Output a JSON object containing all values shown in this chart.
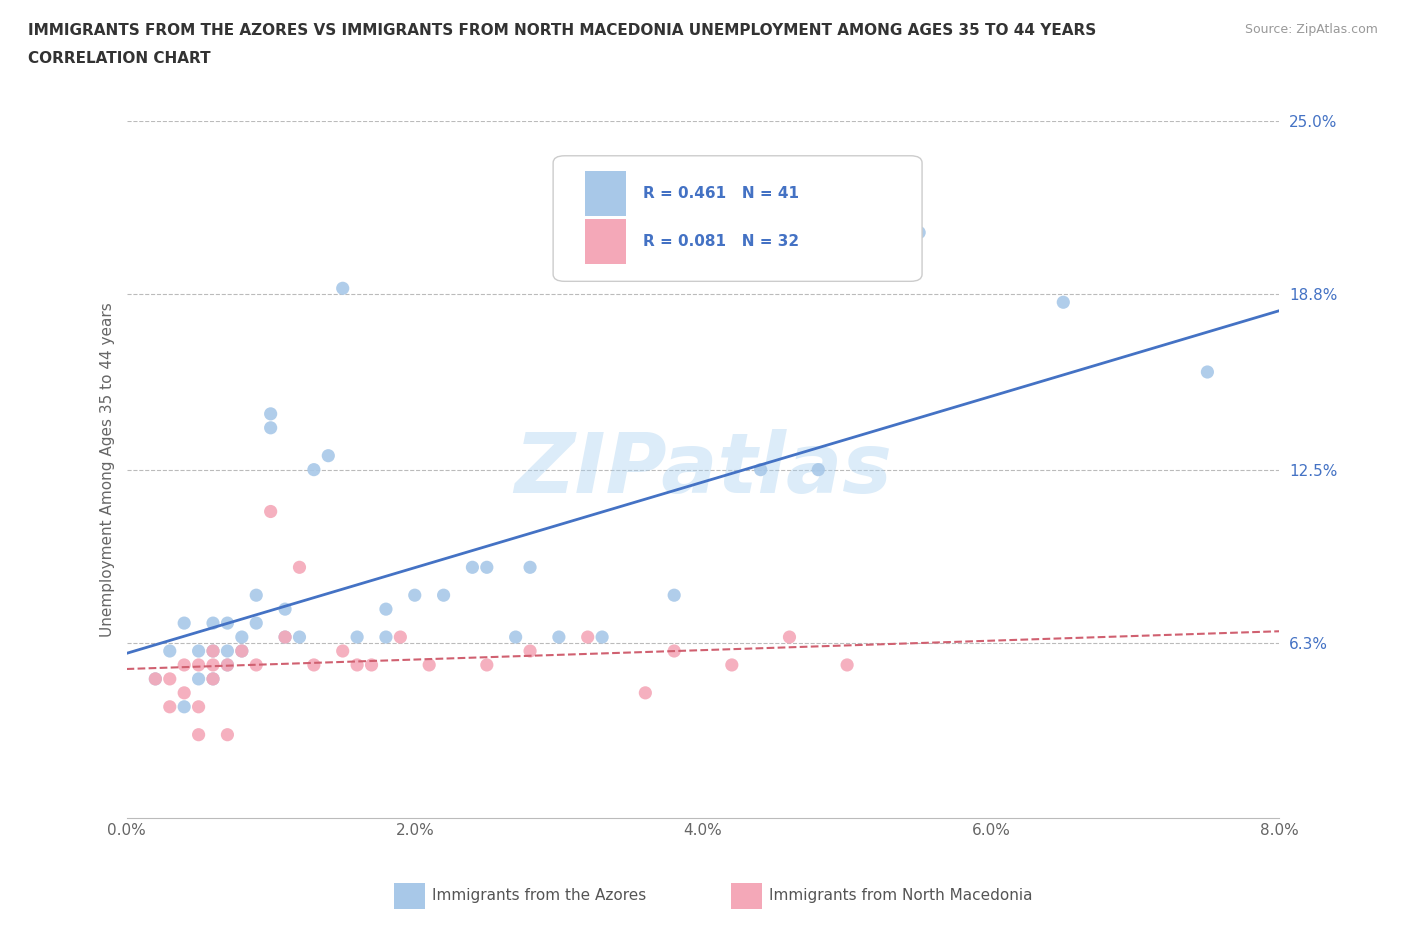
{
  "title_line1": "IMMIGRANTS FROM THE AZORES VS IMMIGRANTS FROM NORTH MACEDONIA UNEMPLOYMENT AMONG AGES 35 TO 44 YEARS",
  "title_line2": "CORRELATION CHART",
  "source": "Source: ZipAtlas.com",
  "xlabel_azores": "Immigrants from the Azores",
  "xlabel_macedonia": "Immigrants from North Macedonia",
  "ylabel": "Unemployment Among Ages 35 to 44 years",
  "xlim": [
    0.0,
    0.08
  ],
  "ylim": [
    0.0,
    0.25
  ],
  "yticks": [
    0.0,
    0.063,
    0.125,
    0.188,
    0.25
  ],
  "ytick_labels": [
    "",
    "6.3%",
    "12.5%",
    "18.8%",
    "25.0%"
  ],
  "xticks": [
    0.0,
    0.02,
    0.04,
    0.06,
    0.08
  ],
  "xtick_labels": [
    "0.0%",
    "2.0%",
    "4.0%",
    "6.0%",
    "8.0%"
  ],
  "R_azores": 0.461,
  "N_azores": 41,
  "R_macedonia": 0.081,
  "N_macedonia": 32,
  "color_azores": "#a8c8e8",
  "color_macedonia": "#f4a8b8",
  "line_color_azores": "#4472c4",
  "line_color_macedonia": "#d06070",
  "watermark": "ZIPatlas",
  "azores_x": [
    0.002,
    0.003,
    0.004,
    0.004,
    0.005,
    0.005,
    0.006,
    0.006,
    0.006,
    0.007,
    0.007,
    0.007,
    0.008,
    0.008,
    0.009,
    0.009,
    0.01,
    0.01,
    0.011,
    0.011,
    0.012,
    0.013,
    0.014,
    0.015,
    0.016,
    0.018,
    0.018,
    0.02,
    0.022,
    0.024,
    0.025,
    0.027,
    0.028,
    0.03,
    0.033,
    0.038,
    0.044,
    0.048,
    0.055,
    0.065,
    0.075
  ],
  "azores_y": [
    0.05,
    0.06,
    0.04,
    0.07,
    0.05,
    0.06,
    0.05,
    0.06,
    0.07,
    0.06,
    0.07,
    0.055,
    0.06,
    0.065,
    0.07,
    0.08,
    0.14,
    0.145,
    0.065,
    0.075,
    0.065,
    0.125,
    0.13,
    0.19,
    0.065,
    0.065,
    0.075,
    0.08,
    0.08,
    0.09,
    0.09,
    0.065,
    0.09,
    0.065,
    0.065,
    0.08,
    0.125,
    0.125,
    0.21,
    0.185,
    0.16
  ],
  "macedonia_x": [
    0.002,
    0.003,
    0.003,
    0.004,
    0.004,
    0.005,
    0.005,
    0.005,
    0.006,
    0.006,
    0.006,
    0.007,
    0.007,
    0.008,
    0.009,
    0.01,
    0.011,
    0.012,
    0.013,
    0.015,
    0.016,
    0.017,
    0.019,
    0.021,
    0.025,
    0.028,
    0.032,
    0.036,
    0.038,
    0.042,
    0.046,
    0.05
  ],
  "macedonia_y": [
    0.05,
    0.04,
    0.05,
    0.045,
    0.055,
    0.03,
    0.04,
    0.055,
    0.05,
    0.055,
    0.06,
    0.03,
    0.055,
    0.06,
    0.055,
    0.11,
    0.065,
    0.09,
    0.055,
    0.06,
    0.055,
    0.055,
    0.065,
    0.055,
    0.055,
    0.06,
    0.065,
    0.045,
    0.06,
    0.055,
    0.065,
    0.055
  ]
}
